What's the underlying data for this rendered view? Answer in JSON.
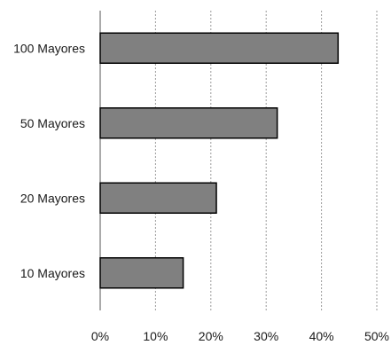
{
  "chart_data": {
    "type": "bar",
    "orientation": "horizontal",
    "categories": [
      "100 Mayores",
      "50 Mayores",
      "20 Mayores",
      "10 Mayores"
    ],
    "values": [
      43,
      32,
      21,
      15
    ],
    "value_unit": "%",
    "xlim": [
      0,
      50
    ],
    "x_ticks": [
      0,
      10,
      20,
      30,
      40,
      50
    ],
    "x_tick_labels": [
      "0%",
      "10%",
      "20%",
      "30%",
      "40%",
      "50%"
    ],
    "title": "",
    "xlabel": "",
    "ylabel": "",
    "grid": "vertical dashed",
    "legend": "none",
    "colors": {
      "bar_fill": "#808080",
      "bar_stroke": "#000000",
      "grid": "#9a9a9a",
      "axis": "#555555"
    }
  }
}
